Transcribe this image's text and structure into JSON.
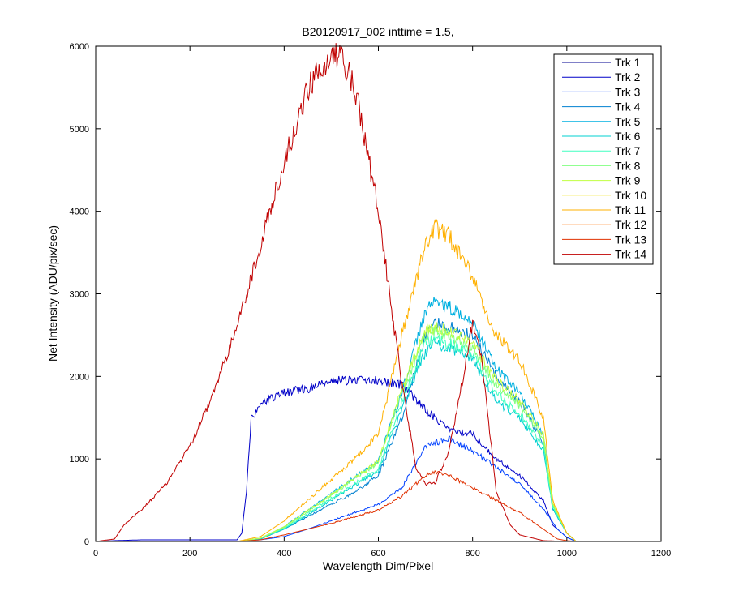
{
  "chart_data": {
    "type": "line",
    "title": "B20120917_002 inttime = 1.5,",
    "xlabel": "Wavelength Dim/Pixel",
    "ylabel": "Net Intensity (ADU/pix/sec)",
    "xlim": [
      0,
      1200
    ],
    "ylim": [
      0,
      6000
    ],
    "xticks": [
      0,
      200,
      400,
      600,
      800,
      1000,
      1200
    ],
    "yticks": [
      0,
      1000,
      2000,
      3000,
      4000,
      5000,
      6000
    ],
    "xtick_labels": [
      "0",
      "200",
      "400",
      "600",
      "800",
      "1000",
      "1200"
    ],
    "ytick_labels": [
      "0",
      "1000",
      "2000",
      "3000",
      "4000",
      "5000",
      "6000"
    ],
    "grid": false,
    "legend_position": "top-right",
    "series": [
      {
        "name": "Trk 1",
        "color": "#000090",
        "x": [
          0,
          1030
        ],
        "values": [
          0,
          0
        ]
      },
      {
        "name": "Trk 2",
        "color": "#0000c8",
        "x": [
          0,
          40,
          100,
          200,
          300,
          310,
          320,
          330,
          360,
          400,
          450,
          500,
          550,
          600,
          650,
          700,
          750,
          800,
          850,
          900,
          950,
          970,
          1000,
          1020
        ],
        "values": [
          0,
          10,
          20,
          20,
          20,
          100,
          600,
          1500,
          1700,
          1800,
          1850,
          1950,
          1950,
          1950,
          1900,
          1600,
          1350,
          1300,
          1000,
          800,
          500,
          200,
          50,
          0
        ]
      },
      {
        "name": "Trk 3",
        "color": "#0040ff",
        "x": [
          0,
          300,
          350,
          400,
          450,
          500,
          550,
          600,
          650,
          700,
          750,
          800,
          850,
          900,
          950,
          980,
          1000,
          1020
        ],
        "values": [
          0,
          0,
          20,
          60,
          150,
          250,
          350,
          450,
          650,
          1150,
          1250,
          1100,
          900,
          700,
          400,
          150,
          50,
          0
        ]
      },
      {
        "name": "Trk 4",
        "color": "#0080d0",
        "x": [
          0,
          300,
          350,
          400,
          450,
          500,
          550,
          600,
          650,
          700,
          720,
          750,
          800,
          850,
          900,
          950,
          970,
          1000,
          1020
        ],
        "values": [
          0,
          0,
          30,
          150,
          300,
          450,
          600,
          800,
          1500,
          2500,
          2650,
          2600,
          2500,
          2000,
          1700,
          1200,
          400,
          100,
          0
        ]
      },
      {
        "name": "Trk 5",
        "color": "#00b0e0",
        "x": [
          0,
          300,
          350,
          400,
          450,
          500,
          550,
          600,
          650,
          700,
          720,
          750,
          800,
          850,
          900,
          950,
          970,
          1000,
          1020
        ],
        "values": [
          0,
          0,
          40,
          180,
          380,
          580,
          780,
          980,
          1800,
          2800,
          2900,
          2850,
          2650,
          2100,
          1800,
          1300,
          450,
          100,
          0
        ]
      },
      {
        "name": "Trk 6",
        "color": "#00d0d0",
        "x": [
          0,
          300,
          350,
          400,
          450,
          500,
          550,
          600,
          650,
          700,
          720,
          750,
          800,
          850,
          900,
          950,
          970,
          1000,
          1020
        ],
        "values": [
          0,
          0,
          35,
          150,
          320,
          500,
          680,
          850,
          1600,
          2300,
          2400,
          2350,
          2200,
          1700,
          1500,
          1100,
          400,
          100,
          0
        ]
      },
      {
        "name": "Trk 7",
        "color": "#40ffc0",
        "x": [
          0,
          300,
          350,
          400,
          450,
          500,
          550,
          600,
          650,
          700,
          720,
          750,
          800,
          850,
          900,
          950,
          970,
          1000,
          1020
        ],
        "values": [
          0,
          0,
          35,
          160,
          340,
          520,
          700,
          880,
          1700,
          2400,
          2450,
          2400,
          2250,
          1800,
          1550,
          1150,
          420,
          100,
          0
        ]
      },
      {
        "name": "Trk 8",
        "color": "#80ff80",
        "x": [
          0,
          300,
          350,
          400,
          450,
          500,
          550,
          600,
          650,
          700,
          720,
          750,
          800,
          850,
          900,
          950,
          970,
          1000,
          1020
        ],
        "values": [
          0,
          0,
          40,
          170,
          360,
          560,
          760,
          960,
          1800,
          2500,
          2550,
          2500,
          2350,
          1900,
          1650,
          1250,
          450,
          100,
          0
        ]
      },
      {
        "name": "Trk 9",
        "color": "#c0ff40",
        "x": [
          0,
          300,
          350,
          400,
          450,
          500,
          550,
          600,
          650,
          700,
          720,
          750,
          800,
          850,
          900,
          950,
          970,
          1000,
          1020
        ],
        "values": [
          0,
          0,
          40,
          180,
          370,
          570,
          770,
          970,
          1850,
          2550,
          2600,
          2550,
          2400,
          1950,
          1700,
          1300,
          460,
          100,
          0
        ]
      },
      {
        "name": "Trk 10",
        "color": "#f0e000",
        "x": [
          0,
          1030
        ],
        "values": [
          0,
          0
        ]
      },
      {
        "name": "Trk 11",
        "color": "#ffb000",
        "x": [
          0,
          300,
          350,
          400,
          450,
          500,
          550,
          600,
          650,
          700,
          720,
          750,
          800,
          850,
          900,
          950,
          970,
          1000,
          1020
        ],
        "values": [
          0,
          0,
          60,
          250,
          500,
          750,
          1000,
          1300,
          2500,
          3600,
          3800,
          3700,
          3200,
          2500,
          2200,
          1500,
          500,
          100,
          0
        ]
      },
      {
        "name": "Trk 12",
        "color": "#ff7000",
        "x": [
          0,
          1030
        ],
        "values": [
          0,
          0
        ]
      },
      {
        "name": "Trk 13",
        "color": "#e03000",
        "x": [
          0,
          300,
          350,
          400,
          450,
          500,
          550,
          600,
          650,
          700,
          720,
          750,
          800,
          850,
          900,
          950,
          980,
          1000,
          1020
        ],
        "values": [
          0,
          0,
          20,
          80,
          150,
          220,
          300,
          380,
          550,
          800,
          850,
          800,
          650,
          500,
          350,
          150,
          30,
          10,
          0
        ]
      },
      {
        "name": "Trk 14",
        "color": "#c00000",
        "x": [
          0,
          40,
          60,
          100,
          150,
          200,
          250,
          300,
          350,
          400,
          450,
          500,
          520,
          550,
          600,
          650,
          680,
          700,
          720,
          750,
          780,
          800,
          820,
          850,
          880,
          900,
          950,
          1000
        ],
        "values": [
          0,
          30,
          200,
          400,
          700,
          1150,
          1800,
          2600,
          3600,
          4600,
          5500,
          5900,
          5870,
          5500,
          4000,
          1900,
          900,
          700,
          700,
          1100,
          2000,
          2650,
          2200,
          600,
          200,
          80,
          10,
          0
        ]
      }
    ]
  }
}
